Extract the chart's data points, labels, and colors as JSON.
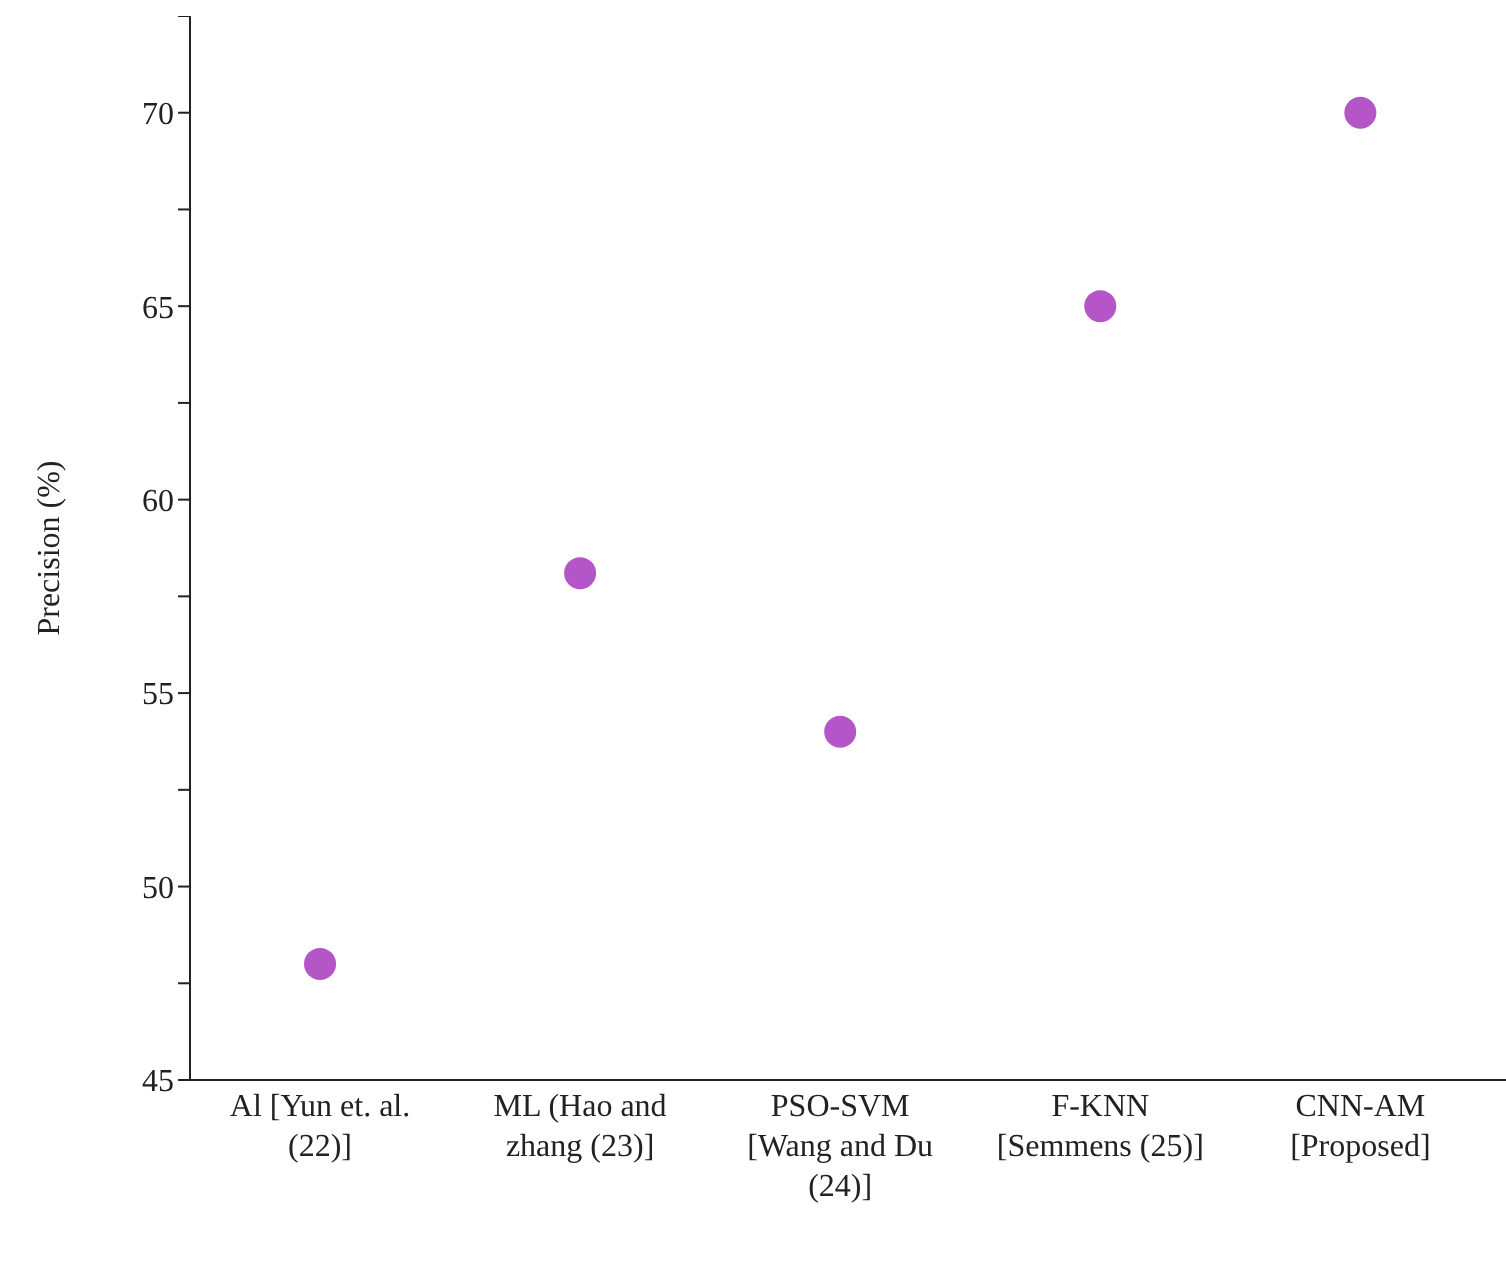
{
  "chart_data": {
    "type": "scatter",
    "ylabel": "Precision (%)",
    "categories": [
      "Al [Yun et. al. (22)]",
      "ML (Hao and zhang (23)]",
      "PSO-SVM [Wang and Du (24)]",
      "F-KNN [Semmens (25)]",
      "CNN-AM [Proposed]"
    ],
    "series": [
      {
        "color": "#b455c8",
        "values": [
          48,
          58.1,
          54,
          65,
          70
        ]
      }
    ],
    "ylim": [
      45,
      72.5
    ],
    "yticks": [
      45,
      {
        "value": 47.5,
        "label": null
      },
      50,
      {
        "value": 52.5,
        "label": null
      },
      55,
      {
        "value": 57.5,
        "label": null
      },
      60,
      {
        "value": 62.5,
        "label": null
      },
      65,
      {
        "value": 67.5,
        "label": null
      },
      70,
      {
        "value": 72.5,
        "label": null
      }
    ],
    "grid": false,
    "legend": false,
    "marker": "circle"
  }
}
